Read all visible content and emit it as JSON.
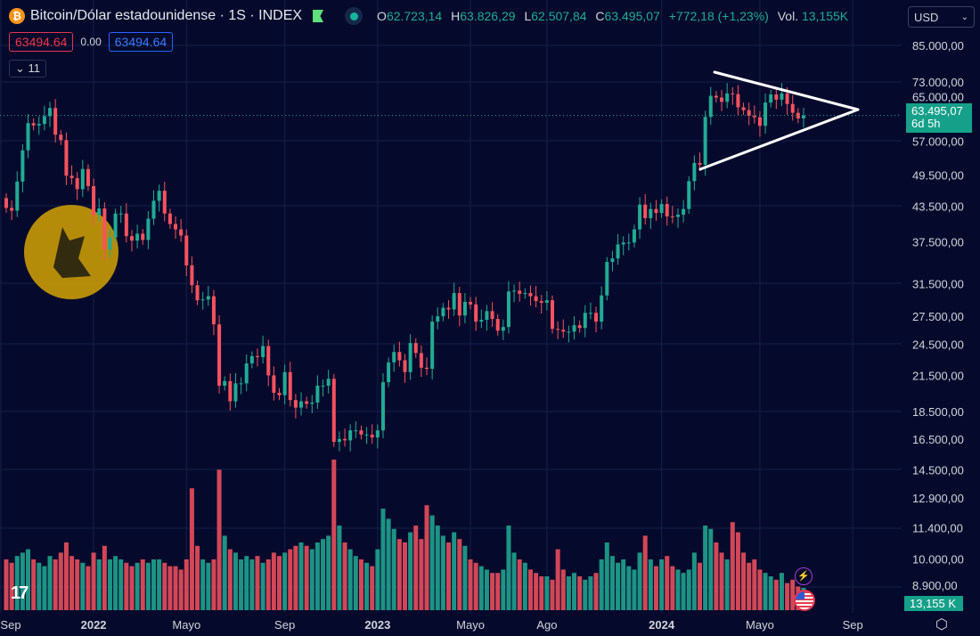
{
  "header": {
    "symbol_icon": "bitcoin-icon",
    "title": "Bitcoin/Dólar estadounidense · 1S · INDEX",
    "ohlc": [
      {
        "key": "O",
        "value": "62.723,14"
      },
      {
        "key": "H",
        "value": "63.826,29"
      },
      {
        "key": "L",
        "value": "62.507,84"
      },
      {
        "key": "C",
        "value": "63.495,07"
      }
    ],
    "change": "+772,18 (+1,23%)",
    "vol_label": "Vol.",
    "vol_value": "13,155K",
    "sell_price": "63494.64",
    "spread": "0.00",
    "buy_price": "63494.64",
    "indicators_count": "11",
    "currency": "USD"
  },
  "price_label": {
    "price": "63.495,07",
    "countdown": "6d 5h"
  },
  "volume_label": "13,155 K",
  "colors": {
    "up": "#22ab94",
    "down": "#f7525f",
    "background": "#050a2c"
  },
  "chart_data": {
    "type": "candlestick",
    "title": "Bitcoin/Dólar estadounidense · 1S · INDEX",
    "interval": "1 week",
    "y_scale": "log",
    "ylim": [
      8900,
      85000
    ],
    "first_open": 45.0,
    "last_open": 62.723,
    "closes_thousands_usd": [
      43.2,
      42.7,
      48.2,
      54.9,
      61.5,
      60.9,
      61.3,
      63.3,
      65.5,
      58.6,
      57.3,
      49.4,
      48.9,
      46.7,
      50.8,
      47.3,
      41.9,
      43.1,
      36.3,
      38.2,
      42.2,
      42.2,
      38.4,
      37.7,
      38.8,
      37.8,
      41.3,
      44.5,
      46.4,
      42.2,
      40.4,
      39.5,
      38.5,
      34.0,
      31.3,
      29.4,
      29.5,
      29.9,
      26.6,
      20.6,
      21.0,
      19.3,
      20.8,
      20.8,
      22.6,
      23.3,
      23.2,
      24.3,
      21.5,
      20.0,
      19.8,
      21.8,
      19.4,
      18.8,
      19.3,
      19.1,
      19.2,
      20.6,
      20.6,
      21.2,
      16.3,
      16.5,
      16.4,
      17.1,
      17.1,
      16.8,
      16.8,
      16.6,
      17.1,
      20.9,
      22.7,
      23.7,
      22.9,
      21.8,
      24.6,
      23.6,
      22.2,
      22.1,
      26.9,
      27.5,
      28.5,
      28.3,
      30.3,
      27.6,
      29.2,
      28.9,
      26.9,
      27.1,
      28.1,
      27.2,
      25.9,
      26.3,
      30.5,
      30.6,
      30.2,
      30.3,
      29.9,
      29.3,
      29.1,
      29.4,
      26.1,
      26.0,
      25.8,
      25.8,
      26.5,
      26.2,
      27.9,
      27.9,
      26.9,
      30.0,
      34.5,
      35.0,
      37.1,
      37.4,
      37.4,
      39.5,
      43.8,
      41.4,
      43.0,
      42.3,
      43.9,
      41.7,
      41.6,
      42.0,
      43.0,
      48.3,
      52.1,
      51.7,
      63.1,
      68.9,
      68.4,
      67.2,
      69.6,
      69.4,
      65.7,
      64.9,
      63.4,
      63.0,
      60.8,
      67.0,
      69.3,
      67.8,
      69.6,
      66.6,
      64.2,
      62.7,
      63.495
    ],
    "volume_k": [
      30,
      28,
      32,
      34,
      36,
      30,
      28,
      26,
      32,
      30,
      34,
      40,
      32,
      30,
      28,
      26,
      34,
      30,
      38,
      30,
      32,
      30,
      28,
      26,
      28,
      30,
      28,
      30,
      30,
      28,
      26,
      26,
      24,
      30,
      72,
      38,
      30,
      28,
      30,
      83,
      44,
      36,
      34,
      30,
      32,
      30,
      32,
      28,
      30,
      34,
      32,
      34,
      36,
      38,
      40,
      38,
      36,
      40,
      42,
      44,
      89,
      50,
      40,
      36,
      32,
      30,
      28,
      26,
      36,
      60,
      54,
      48,
      42,
      40,
      46,
      50,
      42,
      62,
      56,
      50,
      44,
      40,
      46,
      42,
      38,
      30,
      28,
      26,
      24,
      22,
      22,
      24,
      50,
      34,
      30,
      28,
      24,
      22,
      20,
      20,
      18,
      36,
      24,
      20,
      22,
      20,
      18,
      20,
      22,
      30,
      40,
      32,
      28,
      30,
      26,
      24,
      34,
      44,
      30,
      26,
      30,
      32,
      26,
      24,
      22,
      24,
      34,
      28,
      50,
      48,
      40,
      34,
      30,
      52,
      46,
      34,
      28,
      30,
      24,
      22,
      20,
      18,
      22,
      16,
      18,
      14,
      13.155
    ],
    "price_axis": [
      {
        "label": "85.000,00",
        "value": 85000
      },
      {
        "label": "73.000,00",
        "value": 73000
      },
      {
        "label": "65.000,00",
        "value": 65000
      },
      {
        "label": "57.000,00",
        "value": 57000
      },
      {
        "label": "49.500,00",
        "value": 49500
      },
      {
        "label": "43.500,00",
        "value": 43500
      },
      {
        "label": "37.500,00",
        "value": 37500
      },
      {
        "label": "31.500,00",
        "value": 31500
      },
      {
        "label": "27.500,00",
        "value": 27500
      },
      {
        "label": "24.500,00",
        "value": 24500
      },
      {
        "label": "21.500,00",
        "value": 21500
      },
      {
        "label": "18.500,00",
        "value": 18500
      },
      {
        "label": "16.500,00",
        "value": 16500
      },
      {
        "label": "14.500,00",
        "value": 14500
      },
      {
        "label": "12.900,00",
        "value": 12900
      },
      {
        "label": "11.400,00",
        "value": 11400
      },
      {
        "label": "10.000,00",
        "value": 10000
      },
      {
        "label": "8.900,00",
        "value": 8900
      }
    ],
    "time_axis": [
      {
        "label": "Sep",
        "week": -1
      },
      {
        "label": "2022",
        "week": 16,
        "bold": true
      },
      {
        "label": "Mayo",
        "week": 33
      },
      {
        "label": "Sep",
        "week": 51
      },
      {
        "label": "2023",
        "week": 68,
        "bold": true
      },
      {
        "label": "Mayo",
        "week": 85
      },
      {
        "label": "Ago",
        "week": 99
      },
      {
        "label": "2024",
        "week": 120,
        "bold": true
      },
      {
        "label": "Mayo",
        "week": 138
      },
      {
        "label": "Sep",
        "week": 155
      }
    ],
    "current_price": 63495.07
  }
}
